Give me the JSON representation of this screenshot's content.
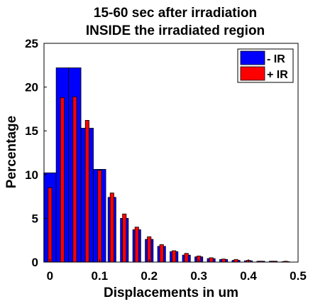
{
  "chart_data": {
    "type": "bar",
    "title_lines": [
      "15-60 sec after irradiation",
      "INSIDE the irradiated region"
    ],
    "xlabel": "Displacements in um",
    "ylabel": "Percentage",
    "xlim": [
      -0.012,
      0.5
    ],
    "ylim": [
      0,
      25
    ],
    "x_ticks": [
      "0",
      "0.1",
      "0.2",
      "0.3",
      "0.4",
      "0.5"
    ],
    "y_ticks": [
      "0",
      "5",
      "10",
      "15",
      "20",
      "25"
    ],
    "legend_position": "top-right",
    "series": [
      {
        "name": "- IR",
        "color": "#0000ff",
        "bins": [
          {
            "x": 0.0,
            "value": 10.2
          },
          {
            "x": 0.025,
            "value": 22.2
          },
          {
            "x": 0.05,
            "value": 22.2
          },
          {
            "x": 0.075,
            "value": 15.3
          },
          {
            "x": 0.1,
            "value": 10.6
          }
        ]
      },
      {
        "name": "+ IR",
        "color": "#ff0000",
        "bins": [
          {
            "x": 0.0,
            "value": 8.5
          },
          {
            "x": 0.0125,
            "value": 0.0
          },
          {
            "x": 0.025,
            "value": 18.8
          },
          {
            "x": 0.0375,
            "value": 0.0
          },
          {
            "x": 0.05,
            "value": 18.9
          },
          {
            "x": 0.0625,
            "value": 0.0
          },
          {
            "x": 0.075,
            "value": 16.2
          },
          {
            "x": 0.0875,
            "value": 0.0
          },
          {
            "x": 0.1,
            "value": 10.5
          },
          {
            "x": 0.1125,
            "value": 0.0
          },
          {
            "x": 0.125,
            "value": 7.9
          },
          {
            "x": 0.1375,
            "value": 0.0
          },
          {
            "x": 0.15,
            "value": 5.5
          },
          {
            "x": 0.1625,
            "value": 0.0
          },
          {
            "x": 0.175,
            "value": 4.0
          },
          {
            "x": 0.1875,
            "value": 0.0
          },
          {
            "x": 0.2,
            "value": 2.9
          },
          {
            "x": 0.2125,
            "value": 0.0
          },
          {
            "x": 0.225,
            "value": 2.0
          },
          {
            "x": 0.2375,
            "value": 0.0
          },
          {
            "x": 0.25,
            "value": 1.3
          },
          {
            "x": 0.2625,
            "value": 0.0
          },
          {
            "x": 0.275,
            "value": 1.0
          },
          {
            "x": 0.2875,
            "value": 0.0
          },
          {
            "x": 0.3,
            "value": 0.7
          },
          {
            "x": 0.3125,
            "value": 0.0
          },
          {
            "x": 0.325,
            "value": 0.5
          },
          {
            "x": 0.3375,
            "value": 0.0
          },
          {
            "x": 0.35,
            "value": 0.35
          },
          {
            "x": 0.3625,
            "value": 0.0
          },
          {
            "x": 0.375,
            "value": 0.3
          },
          {
            "x": 0.3875,
            "value": 0.0
          },
          {
            "x": 0.4,
            "value": 0.2
          },
          {
            "x": 0.4125,
            "value": 0.0
          },
          {
            "x": 0.425,
            "value": 0.1
          },
          {
            "x": 0.4375,
            "value": 0.0
          },
          {
            "x": 0.45,
            "value": 0.1
          },
          {
            "x": 0.4625,
            "value": 0.0
          },
          {
            "x": 0.475,
            "value": 0.1
          }
        ]
      }
    ],
    "background_series": [
      {
        "name": "- IR",
        "color": "#0000ff",
        "bins": [
          {
            "x": 0.125,
            "value": 7.4
          },
          {
            "x": 0.15,
            "value": 5.0
          },
          {
            "x": 0.175,
            "value": 3.7
          },
          {
            "x": 0.2,
            "value": 2.6
          },
          {
            "x": 0.225,
            "value": 1.8
          },
          {
            "x": 0.25,
            "value": 1.2
          },
          {
            "x": 0.275,
            "value": 0.8
          },
          {
            "x": 0.3,
            "value": 0.6
          },
          {
            "x": 0.325,
            "value": 0.4
          },
          {
            "x": 0.35,
            "value": 0.3
          },
          {
            "x": 0.375,
            "value": 0.2
          },
          {
            "x": 0.4,
            "value": 0.15
          },
          {
            "x": 0.425,
            "value": 0.1
          },
          {
            "x": 0.45,
            "value": 0.1
          },
          {
            "x": 0.475,
            "value": 0.05
          }
        ]
      }
    ]
  }
}
